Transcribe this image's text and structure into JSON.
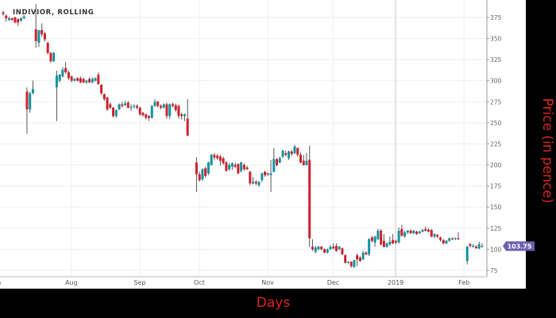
{
  "chart_data": {
    "type": "candlestick",
    "title": "INDIVIOR, ROLLING",
    "xlabel": "Days",
    "ylabel": "Price (in pence)",
    "ylim": [
      68,
      390
    ],
    "yticks": [
      75,
      100,
      125,
      150,
      175,
      200,
      225,
      250,
      275,
      300,
      325,
      350,
      375
    ],
    "xticks": [
      {
        "label": "Jun",
        "date": null
      },
      {
        "label": "Aug",
        "date": "2018-08-01"
      },
      {
        "label": "Sep",
        "date": "2018-09-01"
      },
      {
        "label": "Oct",
        "date": "2018-10-01"
      },
      {
        "label": "Nov",
        "date": "2018-11-01"
      },
      {
        "label": "Dec",
        "date": "2018-12-01"
      },
      {
        "label": "2019",
        "date": "2019-01-01"
      },
      {
        "label": "Feb",
        "date": "2019-02-01"
      }
    ],
    "last_price": "103.75",
    "grid": true,
    "colors": {
      "up": "#11939f",
      "down": "#d0202e",
      "wick": "#555555",
      "badge": "#6a5fb0",
      "axis_label": "#d8261e"
    },
    "candle_fields": [
      "date",
      "open",
      "high",
      "low",
      "close"
    ],
    "candles": [
      [
        "2018-06-28",
        381,
        383,
        377,
        379
      ],
      [
        "2018-06-29",
        377,
        379,
        370,
        374
      ],
      [
        "2018-07-02",
        372,
        376,
        371,
        374
      ],
      [
        "2018-07-03",
        374,
        375,
        371,
        372
      ],
      [
        "2018-07-04",
        375,
        376,
        368,
        369
      ],
      [
        "2018-07-05",
        373,
        374,
        365,
        369
      ],
      [
        "2018-07-06",
        371,
        375,
        370,
        374
      ],
      [
        "2018-07-09",
        374,
        378,
        373,
        376
      ],
      [
        "2018-07-10",
        287,
        292,
        237,
        266
      ],
      [
        "2018-07-11",
        266,
        287,
        262,
        285
      ],
      [
        "2018-07-12",
        285,
        300,
        284,
        290
      ],
      [
        "2018-07-13",
        361,
        391,
        339,
        347
      ],
      [
        "2018-07-16",
        345,
        360,
        340,
        360
      ],
      [
        "2018-07-17",
        360,
        368,
        352,
        355
      ],
      [
        "2018-07-18",
        356,
        358,
        346,
        349
      ],
      [
        "2018-07-19",
        345,
        346,
        331,
        333
      ],
      [
        "2018-07-20",
        333,
        334,
        321,
        323
      ],
      [
        "2018-07-23",
        323,
        334,
        322,
        333
      ],
      [
        "2018-07-24",
        292,
        312,
        252,
        306
      ],
      [
        "2018-07-25",
        300,
        308,
        298,
        307
      ],
      [
        "2018-07-26",
        305,
        316,
        304,
        313
      ],
      [
        "2018-07-27",
        315,
        322,
        308,
        310
      ],
      [
        "2018-07-30",
        310,
        312,
        301,
        303
      ],
      [
        "2018-07-31",
        305,
        306,
        298,
        300
      ],
      [
        "2018-08-01",
        300,
        303,
        299,
        302
      ],
      [
        "2018-08-02",
        303,
        304,
        299,
        300
      ],
      [
        "2018-08-03",
        303,
        305,
        297,
        298
      ],
      [
        "2018-08-06",
        302,
        304,
        297,
        298
      ],
      [
        "2018-08-07",
        298,
        301,
        296,
        300
      ],
      [
        "2018-08-08",
        302,
        304,
        297,
        298
      ],
      [
        "2018-08-09",
        298,
        304,
        297,
        302
      ],
      [
        "2018-08-10",
        300,
        304,
        299,
        303
      ],
      [
        "2018-08-13",
        307,
        310,
        295,
        296
      ],
      [
        "2018-08-14",
        295,
        296,
        283,
        285
      ],
      [
        "2018-08-15",
        284,
        285,
        276,
        278
      ],
      [
        "2018-08-16",
        280,
        281,
        264,
        266
      ],
      [
        "2018-08-17",
        272,
        274,
        266,
        268
      ],
      [
        "2018-08-20",
        268,
        269,
        256,
        258
      ],
      [
        "2018-08-21",
        258,
        266,
        256,
        265
      ],
      [
        "2018-08-22",
        266,
        273,
        265,
        272
      ],
      [
        "2018-08-23",
        272,
        275,
        268,
        270
      ],
      [
        "2018-08-24",
        271,
        276,
        270,
        273
      ],
      [
        "2018-08-27",
        274,
        276,
        267,
        268
      ],
      [
        "2018-08-28",
        268,
        272,
        264,
        269
      ],
      [
        "2018-08-29",
        269,
        272,
        267,
        270
      ],
      [
        "2018-08-30",
        270,
        272,
        266,
        268
      ],
      [
        "2018-08-31",
        268,
        269,
        258,
        260
      ],
      [
        "2018-09-03",
        262,
        263,
        257,
        259
      ],
      [
        "2018-09-04",
        260,
        261,
        254,
        256
      ],
      [
        "2018-09-05",
        258,
        259,
        252,
        256
      ],
      [
        "2018-09-06",
        256,
        271,
        255,
        270
      ],
      [
        "2018-09-07",
        270,
        278,
        269,
        275
      ],
      [
        "2018-09-10",
        275,
        276,
        268,
        270
      ],
      [
        "2018-09-11",
        270,
        272,
        266,
        268
      ],
      [
        "2018-09-12",
        268,
        273,
        267,
        272
      ],
      [
        "2018-09-13",
        272,
        274,
        255,
        258
      ],
      [
        "2018-09-14",
        258,
        273,
        255,
        272
      ],
      [
        "2018-09-17",
        272,
        274,
        268,
        270
      ],
      [
        "2018-09-18",
        271,
        273,
        263,
        265
      ],
      [
        "2018-09-19",
        270,
        272,
        255,
        258
      ],
      [
        "2018-09-20",
        260,
        262,
        254,
        258
      ],
      [
        "2018-09-21",
        258,
        261,
        252,
        260
      ],
      [
        "2018-09-24",
        255,
        278,
        234,
        235
      ],
      [
        "2018-09-27",
        203,
        209,
        168,
        189
      ],
      [
        "2018-09-28",
        189,
        192,
        180,
        182
      ],
      [
        "2018-10-01",
        183,
        196,
        181,
        195
      ],
      [
        "2018-10-02",
        196,
        198,
        185,
        187
      ],
      [
        "2018-10-03",
        190,
        204,
        188,
        203
      ],
      [
        "2018-10-04",
        200,
        213,
        199,
        212
      ],
      [
        "2018-10-05",
        212,
        214,
        206,
        209
      ],
      [
        "2018-10-08",
        211,
        213,
        206,
        208
      ],
      [
        "2018-10-09",
        210,
        212,
        199,
        205
      ],
      [
        "2018-10-10",
        208,
        210,
        200,
        202
      ],
      [
        "2018-10-11",
        203,
        205,
        192,
        193
      ],
      [
        "2018-10-12",
        195,
        202,
        193,
        200
      ],
      [
        "2018-10-15",
        198,
        203,
        194,
        202
      ],
      [
        "2018-10-16",
        200,
        203,
        196,
        198
      ],
      [
        "2018-10-17",
        201,
        202,
        189,
        190
      ],
      [
        "2018-10-18",
        193,
        204,
        191,
        203
      ],
      [
        "2018-10-19",
        200,
        202,
        193,
        195
      ],
      [
        "2018-10-22",
        197,
        199,
        194,
        195
      ],
      [
        "2018-10-23",
        192,
        193,
        176,
        178
      ],
      [
        "2018-10-24",
        178,
        186,
        177,
        180
      ],
      [
        "2018-10-25",
        180,
        182,
        176,
        178
      ],
      [
        "2018-10-26",
        176,
        181,
        174,
        180
      ],
      [
        "2018-10-29",
        182,
        191,
        180,
        190
      ],
      [
        "2018-10-30",
        192,
        193,
        186,
        188
      ],
      [
        "2018-10-31",
        190,
        191,
        187,
        189
      ],
      [
        "2018-11-01",
        188,
        206,
        168,
        190
      ],
      [
        "2018-11-02",
        192,
        220,
        191,
        207
      ],
      [
        "2018-11-05",
        207,
        208,
        198,
        200
      ],
      [
        "2018-11-06",
        203,
        210,
        202,
        208
      ],
      [
        "2018-11-07",
        210,
        218,
        208,
        217
      ],
      [
        "2018-11-08",
        214,
        217,
        210,
        212
      ],
      [
        "2018-11-09",
        208,
        217,
        206,
        216
      ],
      [
        "2018-11-12",
        216,
        218,
        211,
        213
      ],
      [
        "2018-11-13",
        214,
        224,
        213,
        222
      ],
      [
        "2018-11-14",
        220,
        221,
        210,
        212
      ],
      [
        "2018-11-15",
        212,
        215,
        202,
        203
      ],
      [
        "2018-11-16",
        205,
        212,
        199,
        200
      ],
      [
        "2018-11-19",
        200,
        214,
        199,
        205
      ],
      [
        "2018-11-20",
        206,
        223,
        103,
        113
      ],
      [
        "2018-11-21",
        103,
        112,
        98,
        100
      ],
      [
        "2018-11-22",
        97,
        104,
        95,
        102
      ],
      [
        "2018-11-23",
        100,
        104,
        99,
        103
      ],
      [
        "2018-11-26",
        103,
        104,
        99,
        100
      ],
      [
        "2018-11-27",
        100,
        101,
        95,
        96
      ],
      [
        "2018-11-28",
        96,
        101,
        95,
        100
      ],
      [
        "2018-11-29",
        100,
        105,
        99,
        103
      ],
      [
        "2018-11-30",
        103,
        107,
        100,
        101
      ],
      [
        "2018-12-03",
        104,
        107,
        97,
        98
      ],
      [
        "2018-12-04",
        100,
        104,
        99,
        103
      ],
      [
        "2018-12-05",
        101,
        102,
        93,
        94
      ],
      [
        "2018-12-06",
        93,
        94,
        83,
        84
      ],
      [
        "2018-12-07",
        84,
        86,
        83,
        85
      ],
      [
        "2018-12-10",
        85,
        86,
        78,
        80
      ],
      [
        "2018-12-11",
        79,
        88,
        78,
        87
      ],
      [
        "2018-12-12",
        93,
        95,
        80,
        88
      ],
      [
        "2018-12-13",
        90,
        92,
        85,
        86
      ],
      [
        "2018-12-14",
        88,
        98,
        87,
        96
      ],
      [
        "2018-12-17",
        96,
        98,
        93,
        94
      ],
      [
        "2018-12-18",
        94,
        113,
        92,
        112
      ],
      [
        "2018-12-19",
        114,
        116,
        108,
        110
      ],
      [
        "2018-12-20",
        108,
        116,
        103,
        115
      ],
      [
        "2018-12-21",
        112,
        124,
        111,
        122
      ],
      [
        "2018-12-24",
        122,
        124,
        104,
        106
      ],
      [
        "2018-12-25",
        110,
        118,
        102,
        103
      ],
      [
        "2018-12-26",
        103,
        108,
        102,
        107
      ],
      [
        "2018-12-27",
        106,
        115,
        104,
        109
      ],
      [
        "2018-12-28",
        111,
        118,
        106,
        107
      ],
      [
        "2018-12-31",
        110,
        111,
        106,
        108
      ],
      [
        "2019-01-01",
        108,
        126,
        107,
        122
      ],
      [
        "2019-01-02",
        124,
        129,
        115,
        116
      ],
      [
        "2019-01-03",
        115,
        122,
        114,
        120
      ],
      [
        "2019-01-04",
        120,
        123,
        118,
        122
      ],
      [
        "2019-01-07",
        122,
        124,
        118,
        119
      ],
      [
        "2019-01-08",
        119,
        123,
        118,
        122
      ],
      [
        "2019-01-09",
        121,
        122,
        117,
        118
      ],
      [
        "2019-01-10",
        119,
        122,
        118,
        121
      ],
      [
        "2019-01-11",
        121,
        124,
        120,
        123
      ],
      [
        "2019-01-14",
        124,
        127,
        121,
        122
      ],
      [
        "2019-01-15",
        123,
        125,
        120,
        121
      ],
      [
        "2019-01-16",
        123,
        124,
        114,
        115
      ],
      [
        "2019-01-17",
        115,
        119,
        113,
        118
      ],
      [
        "2019-01-18",
        117,
        118,
        113,
        115
      ],
      [
        "2019-01-21",
        114,
        115,
        109,
        111
      ],
      [
        "2019-01-22",
        111,
        112,
        106,
        107
      ],
      [
        "2019-01-23",
        107,
        111,
        106,
        110
      ],
      [
        "2019-01-24",
        110,
        114,
        109,
        113
      ],
      [
        "2019-01-25",
        113,
        114,
        111,
        112
      ],
      [
        "2019-01-28",
        112,
        114,
        111,
        113
      ],
      [
        "2019-01-29",
        113,
        120,
        111,
        112
      ],
      [
        "2019-02-01",
        86,
        104,
        82,
        103
      ],
      [
        "2019-02-04",
        106,
        108,
        102,
        104
      ],
      [
        "2019-02-05",
        103,
        106,
        102,
        104
      ],
      [
        "2019-02-06",
        103,
        105,
        101,
        101
      ],
      [
        "2019-02-07",
        101,
        109,
        100,
        106
      ],
      [
        "2019-02-08",
        103,
        107,
        102,
        103.75
      ]
    ]
  }
}
